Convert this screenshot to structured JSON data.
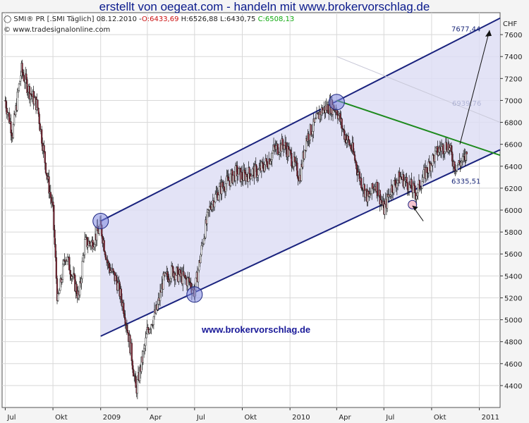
{
  "header": {
    "title": "erstellt von oegeat.com - handeln mit www.brokervorschlag.de",
    "info_prefix": "SMI® PR [.SMI  Täglich] 08.12.2010 -",
    "open": "O:6433,69",
    "high_low": "H:6526,88 L:6430,75",
    "close": "C:6508,13",
    "copyright": "© www.tradesignalonline.com"
  },
  "chart_data": {
    "type": "candlestick",
    "currency": "CHF",
    "ylim": [
      4200,
      7800
    ],
    "y_ticks": [
      4400,
      4600,
      4800,
      5000,
      5200,
      5400,
      5600,
      5800,
      6000,
      6200,
      6400,
      6600,
      6800,
      7000,
      7200,
      7400,
      7600
    ],
    "x_ticks": [
      "Jul",
      "Okt",
      "2009",
      "Apr",
      "Jul",
      "Okt",
      "2010",
      "Apr",
      "Jul",
      "Okt",
      "2011"
    ],
    "grid": true,
    "series": [
      {
        "x": "2008-07",
        "y": 7000
      },
      {
        "x": "2008-07-15",
        "y": 6700
      },
      {
        "x": "2008-08",
        "y": 7280
      },
      {
        "x": "2008-08-15",
        "y": 7100
      },
      {
        "x": "2008-09",
        "y": 6950
      },
      {
        "x": "2008-09-20",
        "y": 6300
      },
      {
        "x": "2008-10",
        "y": 6000
      },
      {
        "x": "2008-10-10",
        "y": 5150
      },
      {
        "x": "2008-10-25",
        "y": 5600
      },
      {
        "x": "2008-11",
        "y": 5500
      },
      {
        "x": "2008-11-20",
        "y": 5200
      },
      {
        "x": "2008-12",
        "y": 5700
      },
      {
        "x": "2008-12-15",
        "y": 5700
      },
      {
        "x": "2009-01",
        "y": 5850
      },
      {
        "x": "2009-01-15",
        "y": 5500
      },
      {
        "x": "2009-02",
        "y": 5350
      },
      {
        "x": "2009-02-15",
        "y": 5100
      },
      {
        "x": "2009-03",
        "y": 4700
      },
      {
        "x": "2009-03-10",
        "y": 4350
      },
      {
        "x": "2009-03-25",
        "y": 4700
      },
      {
        "x": "2009-04",
        "y": 4900
      },
      {
        "x": "2009-04-20",
        "y": 5100
      },
      {
        "x": "2009-05",
        "y": 5350
      },
      {
        "x": "2009-05-20",
        "y": 5450
      },
      {
        "x": "2009-06",
        "y": 5400
      },
      {
        "x": "2009-06-20",
        "y": 5350
      },
      {
        "x": "2009-07",
        "y": 5250
      },
      {
        "x": "2009-07-20",
        "y": 5800
      },
      {
        "x": "2009-08",
        "y": 6050
      },
      {
        "x": "2009-08-20",
        "y": 6200
      },
      {
        "x": "2009-09",
        "y": 6250
      },
      {
        "x": "2009-09-20",
        "y": 6350
      },
      {
        "x": "2009-10",
        "y": 6300
      },
      {
        "x": "2009-10-20",
        "y": 6350
      },
      {
        "x": "2009-11",
        "y": 6350
      },
      {
        "x": "2009-11-20",
        "y": 6450
      },
      {
        "x": "2009-12",
        "y": 6550
      },
      {
        "x": "2009-12-20",
        "y": 6600
      },
      {
        "x": "2010-01",
        "y": 6500
      },
      {
        "x": "2010-01-20",
        "y": 6300
      },
      {
        "x": "2010-02",
        "y": 6650
      },
      {
        "x": "2010-02-20",
        "y": 6800
      },
      {
        "x": "2010-03",
        "y": 6900
      },
      {
        "x": "2010-03-20",
        "y": 6950
      },
      {
        "x": "2010-04",
        "y": 6920
      },
      {
        "x": "2010-04-15",
        "y": 6700
      },
      {
        "x": "2010-05",
        "y": 6550
      },
      {
        "x": "2010-05-15",
        "y": 6300
      },
      {
        "x": "2010-06",
        "y": 6100
      },
      {
        "x": "2010-06-15",
        "y": 6250
      },
      {
        "x": "2010-07",
        "y": 6000
      },
      {
        "x": "2010-07-15",
        "y": 6200
      },
      {
        "x": "2010-08",
        "y": 6300
      },
      {
        "x": "2010-08-15",
        "y": 6250
      },
      {
        "x": "2010-09",
        "y": 6150
      },
      {
        "x": "2010-09-15",
        "y": 6300
      },
      {
        "x": "2010-10",
        "y": 6450
      },
      {
        "x": "2010-10-15",
        "y": 6550
      },
      {
        "x": "2010-11",
        "y": 6600
      },
      {
        "x": "2010-11-15",
        "y": 6400
      },
      {
        "x": "2010-12",
        "y": 6450
      },
      {
        "x": "2010-12-08",
        "y": 6508
      }
    ],
    "annotations": {
      "target_label": "7677,44",
      "upper_label": "6335,51",
      "faint_label": "6939,76",
      "watermark": "www.brokervorschlag.de"
    },
    "colors": {
      "channel_fill": "#dedef4",
      "channel_line": "#1a237e",
      "trend_line": "#1e8a1e",
      "bull": "#ffffff",
      "bear": "#8a2a3a",
      "grid": "#d8d8d8"
    }
  }
}
